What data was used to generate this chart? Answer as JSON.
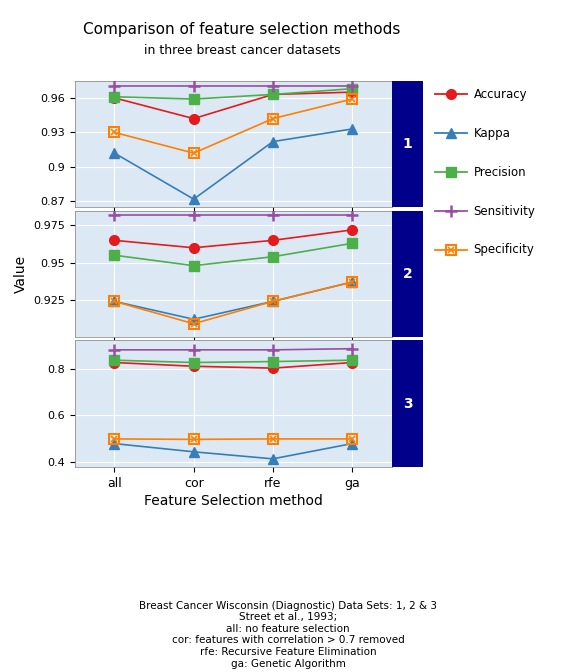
{
  "title": "Comparison of feature selection methods",
  "subtitle": "in three breast cancer datasets",
  "xlabel": "Feature Selection method",
  "ylabel": "Value",
  "x_labels": [
    "all",
    "cor",
    "rfe",
    "ga"
  ],
  "datasets": {
    "1": {
      "Accuracy": [
        0.96,
        0.942,
        0.963,
        0.965
      ],
      "Kappa": [
        0.912,
        0.872,
        0.922,
        0.933
      ],
      "Precision": [
        0.961,
        0.959,
        0.963,
        0.968
      ],
      "Sensitivity": [
        0.97,
        0.97,
        0.97,
        0.97
      ],
      "Specificity": [
        0.93,
        0.912,
        0.942,
        0.959
      ]
    },
    "2": {
      "Accuracy": [
        0.965,
        0.96,
        0.965,
        0.972
      ],
      "Kappa": [
        0.924,
        0.912,
        0.924,
        0.937
      ],
      "Precision": [
        0.955,
        0.948,
        0.954,
        0.963
      ],
      "Sensitivity": [
        0.982,
        0.982,
        0.982,
        0.982
      ],
      "Specificity": [
        0.924,
        0.909,
        0.924,
        0.937
      ]
    },
    "3": {
      "Accuracy": [
        0.826,
        0.81,
        0.802,
        0.826
      ],
      "Kappa": [
        0.48,
        0.445,
        0.415,
        0.48
      ],
      "Precision": [
        0.836,
        0.826,
        0.83,
        0.836
      ],
      "Sensitivity": [
        0.88,
        0.88,
        0.88,
        0.885
      ],
      "Specificity": [
        0.5,
        0.498,
        0.5,
        0.5
      ]
    }
  },
  "ylims": {
    "1": [
      0.865,
      0.975
    ],
    "2": [
      0.9,
      0.985
    ],
    "3": [
      0.38,
      0.92
    ]
  },
  "yticks": {
    "1": [
      0.87,
      0.9,
      0.93,
      0.96
    ],
    "2": [
      0.925,
      0.95,
      0.975
    ],
    "3": [
      0.4,
      0.6,
      0.8
    ]
  },
  "colors": {
    "Accuracy": "#e41a1c",
    "Kappa": "#377eb8",
    "Precision": "#4daf4a",
    "Sensitivity": "#984ea3",
    "Specificity": "#ff7f00"
  },
  "panel_bg_color": "#dce9f5",
  "panel_label_bg": "#00008B",
  "caption": "Breast Cancer Wisconsin (Diagnostic) Data Sets: 1, 2 & 3\nStreet et al., 1993;\nall: no feature selection\ncor: features with correlation > 0.7 removed\nrfe: Recursive Feature Elimination\nga: Genetic Algorithm"
}
